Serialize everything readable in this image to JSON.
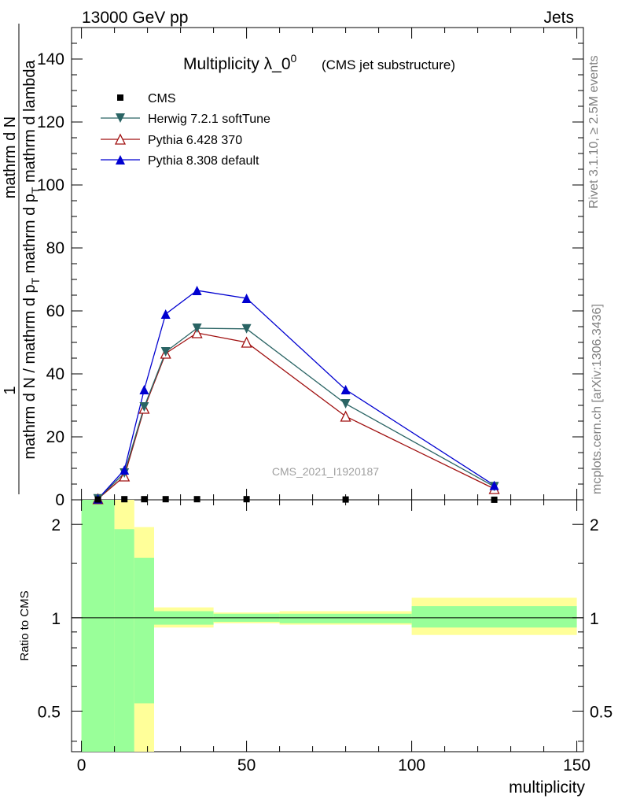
{
  "header": {
    "energy_label": "13000 GeV pp",
    "category": "Jets",
    "rivet_note": "Rivet 3.1.10, ≥ 2.5M events",
    "site_note": "mcplots.cern.ch [arXiv:1306.3436]",
    "analysis_id": "CMS_2021_I1920187"
  },
  "chart_data": {
    "type": "line",
    "title": "Multiplicity λ_0",
    "title_sup": "0",
    "subtitle": "(CMS jet substructure)",
    "xlabel": "multiplicity",
    "ylabel_parts": [
      "1",
      "mathrm d N / mathrm d p",
      "T",
      "mathrm d N",
      "mathrm d p",
      "T",
      "mathrm d lambda",
      "mathrm d"
    ],
    "ylabel_main": "mathrm d N / mathrm d p_T mathrm d p_T mathrm d lambda",
    "xlim": [
      -3,
      152
    ],
    "ylim": [
      0,
      150
    ],
    "x_ticks": [
      0,
      50,
      100,
      150
    ],
    "y_ticks": [
      20,
      40,
      60,
      80,
      100,
      120,
      140
    ],
    "y_tick_labels": [
      "20",
      "40",
      "60",
      "80",
      "100",
      "120",
      "140"
    ],
    "legend": [
      "CMS",
      "Herwig 7.2.1 softTune",
      "Pythia 6.428 370",
      "Pythia 8.308 default"
    ],
    "x": [
      5,
      13,
      19,
      25.5,
      35,
      50,
      80,
      125
    ],
    "series": [
      {
        "name": "CMS",
        "color": "#000000",
        "marker": "square",
        "values": [
          0.1,
          0.2,
          0.2,
          0.2,
          0.2,
          0.2,
          0.1,
          0.02
        ]
      },
      {
        "name": "Herwig 7.2.1 softTune",
        "color": "#2a6464",
        "marker": "triangle-down",
        "values": [
          0.3,
          8.5,
          29.5,
          47,
          54.5,
          54.3,
          30.5,
          4.2
        ]
      },
      {
        "name": "Pythia 6.428 370",
        "color": "#a01010",
        "marker": "triangle-up-open",
        "values": [
          0.3,
          7.5,
          29,
          46.5,
          53,
          50,
          26.5,
          3.5
        ]
      },
      {
        "name": "Pythia 8.308 default",
        "color": "#0000d0",
        "marker": "triangle-up",
        "values": [
          0.3,
          9.5,
          35,
          59,
          66.5,
          64,
          35,
          4.6
        ]
      }
    ],
    "ratio": {
      "ylabel": "Ratio to CMS",
      "ylim_log": [
        0.37,
        2.4
      ],
      "y_ticks": [
        0.5,
        1,
        2
      ],
      "y_tick_labels": [
        "0.5",
        "1",
        "2"
      ],
      "bins": [
        {
          "lo": 0,
          "hi": 10,
          "y_lo": 0.3,
          "y_hi": 3.0,
          "g_lo": 0.3,
          "g_hi": 3.0
        },
        {
          "lo": 10,
          "hi": 16,
          "y_lo": 0.3,
          "y_hi": 3.0,
          "g_lo": 0.3,
          "g_hi": 1.93
        },
        {
          "lo": 16,
          "hi": 22,
          "y_lo": 0.3,
          "y_hi": 1.96,
          "g_lo": 0.53,
          "g_hi": 1.56
        },
        {
          "lo": 22,
          "hi": 40,
          "y_lo": 0.93,
          "y_hi": 1.08,
          "g_lo": 0.95,
          "g_hi": 1.05
        },
        {
          "lo": 40,
          "hi": 60,
          "y_lo": 0.96,
          "y_hi": 1.04,
          "g_lo": 0.97,
          "g_hi": 1.03
        },
        {
          "lo": 60,
          "hi": 100,
          "y_lo": 0.95,
          "y_hi": 1.05,
          "g_lo": 0.96,
          "g_hi": 1.03
        },
        {
          "lo": 100,
          "hi": 150,
          "y_lo": 0.88,
          "y_hi": 1.16,
          "g_lo": 0.93,
          "g_hi": 1.09
        }
      ]
    }
  }
}
